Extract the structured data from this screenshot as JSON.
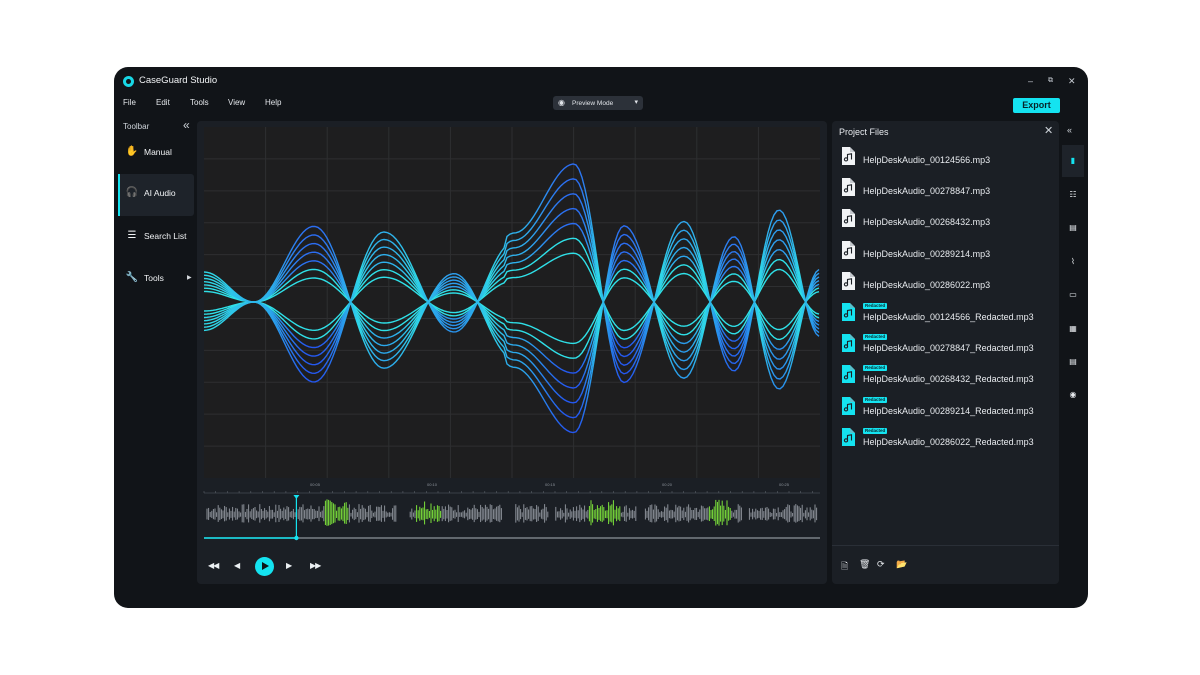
{
  "app": {
    "title": "CaseGuard Studio"
  },
  "window_controls": {
    "minimize": "–",
    "restore": "⧉",
    "close": "✕"
  },
  "menu": [
    "File",
    "Edit",
    "Tools",
    "View",
    "Help"
  ],
  "preview_mode": {
    "label": "Preview Mode"
  },
  "export": {
    "label": "Export"
  },
  "toolbar": {
    "title": "Toolbar",
    "collapse_icon": "«",
    "items": [
      {
        "label": "Manual",
        "icon": "hand-icon"
      },
      {
        "label": "AI Audio",
        "icon": "headset-icon",
        "active": true
      },
      {
        "label": "Search List",
        "icon": "list-search-icon"
      },
      {
        "label": "Tools",
        "icon": "wrench-icon",
        "has_submenu": true
      }
    ]
  },
  "timeline": {
    "ticks": [
      "00:05",
      "00:10",
      "00:15",
      "00:20",
      "00:25"
    ],
    "playhead": 0.15
  },
  "transport": {
    "icons": [
      "skip-back-icon",
      "prev-icon",
      "play-icon",
      "next-icon",
      "skip-forward-icon"
    ]
  },
  "project_files": {
    "title": "Project Files",
    "badge_label": "Redacted",
    "files": [
      {
        "name": "HelpDeskAudio_00124566.mp3",
        "redacted": false
      },
      {
        "name": "HelpDeskAudio_00278847.mp3",
        "redacted": false
      },
      {
        "name": "HelpDeskAudio_00268432.mp3",
        "redacted": false
      },
      {
        "name": "HelpDeskAudio_00289214.mp3",
        "redacted": false
      },
      {
        "name": "HelpDeskAudio_00286022.mp3",
        "redacted": false
      },
      {
        "name": "HelpDeskAudio_00124566_Redacted.mp3",
        "redacted": true
      },
      {
        "name": "HelpDeskAudio_00278847_Redacted.mp3",
        "redacted": true
      },
      {
        "name": "HelpDeskAudio_00268432_Redacted.mp3",
        "redacted": true
      },
      {
        "name": "HelpDeskAudio_00289214_Redacted.mp3",
        "redacted": true
      },
      {
        "name": "HelpDeskAudio_00286022_Redacted.mp3",
        "redacted": true
      }
    ],
    "actions": [
      "new-file-icon",
      "delete-icon",
      "refresh-icon",
      "open-folder-icon"
    ]
  },
  "right_rail": {
    "collapse_icon": "«",
    "items": [
      "audio-icon",
      "checklist-icon",
      "document-icon",
      "chart-icon",
      "media-icon",
      "file-export-icon",
      "file-text-icon",
      "eye-icon"
    ]
  },
  "colors": {
    "accent": "#14e3f0",
    "redact_green": "#7ce23b",
    "wave_gray": "#8b9098",
    "bg": "#111418",
    "panel": "#1b1f25"
  }
}
